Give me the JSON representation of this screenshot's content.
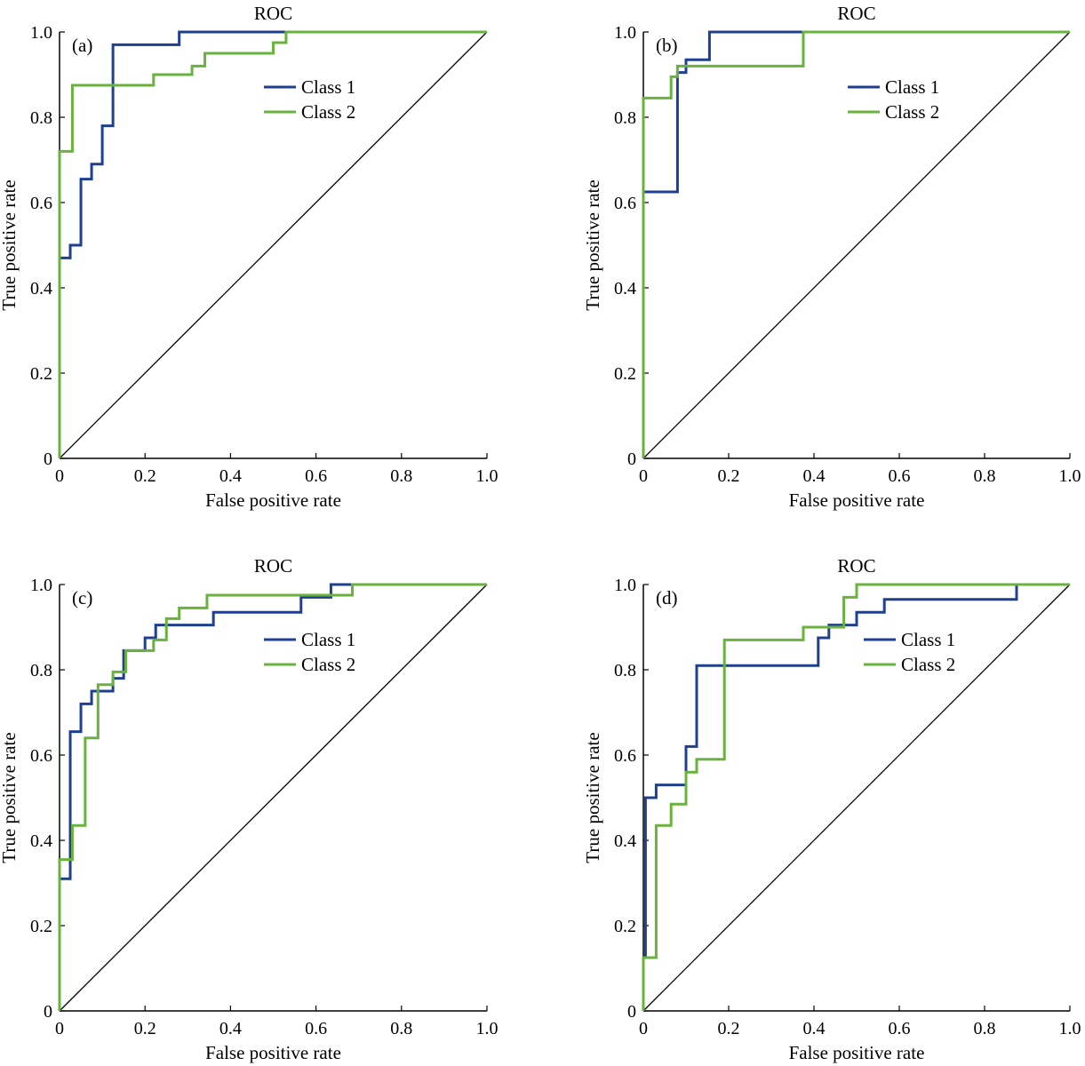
{
  "colors": {
    "class1": "#1f3f8f",
    "class2": "#6ab23e",
    "diagonal": "#000000",
    "axes": "#000000"
  },
  "chart_data": [
    {
      "type": "line",
      "panel": "(a)",
      "title": "ROC",
      "xlabel": "False positive rate",
      "ylabel": "True positive rate",
      "xlim": [
        0,
        1
      ],
      "ylim": [
        0,
        1
      ],
      "xticks": [
        "0",
        "0.2",
        "0.4",
        "0.6",
        "0.8",
        "1.0"
      ],
      "yticks": [
        "0",
        "0.2",
        "0.4",
        "0.6",
        "0.8",
        "1.0"
      ],
      "legend": "top-right",
      "series": [
        {
          "name": "Class 1",
          "points": [
            [
              0,
              0
            ],
            [
              0,
              0.47
            ],
            [
              0.025,
              0.47
            ],
            [
              0.025,
              0.5
            ],
            [
              0.05,
              0.5
            ],
            [
              0.05,
              0.655
            ],
            [
              0.075,
              0.655
            ],
            [
              0.075,
              0.69
            ],
            [
              0.1,
              0.69
            ],
            [
              0.1,
              0.78
            ],
            [
              0.125,
              0.78
            ],
            [
              0.125,
              0.97
            ],
            [
              0.28,
              0.97
            ],
            [
              0.28,
              1.0
            ],
            [
              1,
              1
            ]
          ]
        },
        {
          "name": "Class 2",
          "points": [
            [
              0,
              0
            ],
            [
              0,
              0.72
            ],
            [
              0.03,
              0.72
            ],
            [
              0.03,
              0.875
            ],
            [
              0.22,
              0.875
            ],
            [
              0.22,
              0.9
            ],
            [
              0.31,
              0.9
            ],
            [
              0.31,
              0.92
            ],
            [
              0.34,
              0.92
            ],
            [
              0.34,
              0.95
            ],
            [
              0.5,
              0.95
            ],
            [
              0.5,
              0.975
            ],
            [
              0.53,
              0.975
            ],
            [
              0.53,
              1.0
            ],
            [
              1,
              1
            ]
          ]
        }
      ]
    },
    {
      "type": "line",
      "panel": "(b)",
      "title": "ROC",
      "xlabel": "False positive rate",
      "ylabel": "True positive rate",
      "xlim": [
        0,
        1
      ],
      "ylim": [
        0,
        1
      ],
      "xticks": [
        "0",
        "0.2",
        "0.4",
        "0.6",
        "0.8",
        "1.0"
      ],
      "yticks": [
        "0",
        "0.2",
        "0.4",
        "0.6",
        "0.8",
        "1.0"
      ],
      "legend": "top-right",
      "series": [
        {
          "name": "Class 1",
          "points": [
            [
              0,
              0
            ],
            [
              0,
              0.625
            ],
            [
              0.08,
              0.625
            ],
            [
              0.08,
              0.905
            ],
            [
              0.1,
              0.905
            ],
            [
              0.1,
              0.935
            ],
            [
              0.155,
              0.935
            ],
            [
              0.155,
              1.0
            ],
            [
              1,
              1
            ]
          ]
        },
        {
          "name": "Class 2",
          "points": [
            [
              0,
              0
            ],
            [
              0,
              0.845
            ],
            [
              0.065,
              0.845
            ],
            [
              0.065,
              0.895
            ],
            [
              0.08,
              0.895
            ],
            [
              0.08,
              0.92
            ],
            [
              0.375,
              0.92
            ],
            [
              0.375,
              1.0
            ],
            [
              1,
              1
            ]
          ]
        }
      ]
    },
    {
      "type": "line",
      "panel": "(c)",
      "title": "ROC",
      "xlabel": "False positive rate",
      "ylabel": "True positive rate",
      "xlim": [
        0,
        1
      ],
      "ylim": [
        0,
        1
      ],
      "xticks": [
        "0",
        "0.2",
        "0.4",
        "0.6",
        "0.8",
        "1.0"
      ],
      "yticks": [
        "0",
        "0.2",
        "0.4",
        "0.6",
        "0.8",
        "1.0"
      ],
      "legend": "top-right",
      "series": [
        {
          "name": "Class 1",
          "points": [
            [
              0,
              0
            ],
            [
              0,
              0.31
            ],
            [
              0.025,
              0.31
            ],
            [
              0.025,
              0.655
            ],
            [
              0.05,
              0.655
            ],
            [
              0.05,
              0.72
            ],
            [
              0.075,
              0.72
            ],
            [
              0.075,
              0.75
            ],
            [
              0.125,
              0.75
            ],
            [
              0.125,
              0.78
            ],
            [
              0.15,
              0.78
            ],
            [
              0.15,
              0.845
            ],
            [
              0.2,
              0.845
            ],
            [
              0.2,
              0.875
            ],
            [
              0.225,
              0.875
            ],
            [
              0.225,
              0.905
            ],
            [
              0.36,
              0.905
            ],
            [
              0.36,
              0.935
            ],
            [
              0.565,
              0.935
            ],
            [
              0.565,
              0.97
            ],
            [
              0.635,
              0.97
            ],
            [
              0.635,
              1.0
            ],
            [
              1,
              1
            ]
          ]
        },
        {
          "name": "Class 2",
          "points": [
            [
              0,
              0
            ],
            [
              0,
              0.355
            ],
            [
              0.03,
              0.355
            ],
            [
              0.03,
              0.435
            ],
            [
              0.06,
              0.435
            ],
            [
              0.06,
              0.64
            ],
            [
              0.09,
              0.64
            ],
            [
              0.09,
              0.765
            ],
            [
              0.125,
              0.765
            ],
            [
              0.125,
              0.795
            ],
            [
              0.155,
              0.795
            ],
            [
              0.155,
              0.845
            ],
            [
              0.22,
              0.845
            ],
            [
              0.22,
              0.87
            ],
            [
              0.25,
              0.87
            ],
            [
              0.25,
              0.92
            ],
            [
              0.28,
              0.92
            ],
            [
              0.28,
              0.945
            ],
            [
              0.345,
              0.945
            ],
            [
              0.345,
              0.975
            ],
            [
              0.685,
              0.975
            ],
            [
              0.685,
              1.0
            ],
            [
              1,
              1
            ]
          ]
        }
      ]
    },
    {
      "type": "line",
      "panel": "(d)",
      "title": "ROC",
      "xlabel": "False positive rate",
      "ylabel": "True positive rate",
      "xlim": [
        0,
        1
      ],
      "ylim": [
        0,
        1
      ],
      "xticks": [
        "0",
        "0.2",
        "0.4",
        "0.6",
        "0.8",
        "1.0"
      ],
      "yticks": [
        "0",
        "0.2",
        "0.4",
        "0.6",
        "0.8",
        "1.0"
      ],
      "legend": "top-right",
      "series": [
        {
          "name": "Class 1",
          "points": [
            [
              0,
              0
            ],
            [
              0,
              0.125
            ],
            [
              0.005,
              0.125
            ],
            [
              0.005,
              0.5
            ],
            [
              0.03,
              0.5
            ],
            [
              0.03,
              0.53
            ],
            [
              0.1,
              0.53
            ],
            [
              0.1,
              0.62
            ],
            [
              0.125,
              0.62
            ],
            [
              0.125,
              0.81
            ],
            [
              0.41,
              0.81
            ],
            [
              0.41,
              0.875
            ],
            [
              0.435,
              0.875
            ],
            [
              0.435,
              0.905
            ],
            [
              0.5,
              0.905
            ],
            [
              0.5,
              0.935
            ],
            [
              0.565,
              0.935
            ],
            [
              0.565,
              0.965
            ],
            [
              0.875,
              0.965
            ],
            [
              0.875,
              1.0
            ],
            [
              1,
              1
            ]
          ]
        },
        {
          "name": "Class 2",
          "points": [
            [
              0,
              0
            ],
            [
              0,
              0.125
            ],
            [
              0.03,
              0.125
            ],
            [
              0.03,
              0.435
            ],
            [
              0.065,
              0.435
            ],
            [
              0.065,
              0.485
            ],
            [
              0.1,
              0.485
            ],
            [
              0.1,
              0.56
            ],
            [
              0.125,
              0.56
            ],
            [
              0.125,
              0.59
            ],
            [
              0.19,
              0.59
            ],
            [
              0.19,
              0.87
            ],
            [
              0.375,
              0.87
            ],
            [
              0.375,
              0.9
            ],
            [
              0.47,
              0.9
            ],
            [
              0.47,
              0.97
            ],
            [
              0.5,
              0.97
            ],
            [
              0.5,
              1.0
            ],
            [
              1,
              1
            ]
          ]
        }
      ]
    }
  ]
}
